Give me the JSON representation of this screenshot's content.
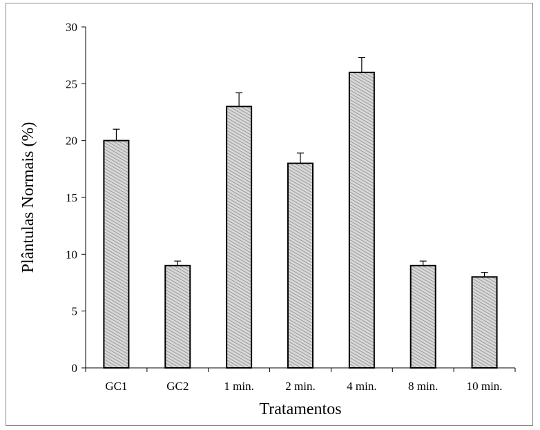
{
  "chart_data": {
    "type": "bar",
    "title": "",
    "xlabel": "Tratamentos",
    "ylabel": "Plântulas Normais (%)",
    "categories": [
      "GC1",
      "GC2",
      "1 min.",
      "2 min.",
      "4 min.",
      "8 min.",
      "10 min."
    ],
    "values": [
      20,
      9,
      23,
      18,
      26,
      9,
      8
    ],
    "error_bars": [
      1.0,
      0.4,
      1.2,
      0.9,
      1.3,
      0.4,
      0.4
    ],
    "ylim": [
      0,
      30
    ],
    "yticks": [
      0,
      5,
      10,
      15,
      20,
      25,
      30
    ],
    "grid": false,
    "legend": "none",
    "bar_fill": "hatched-gray",
    "colors": {
      "bar_stroke": "#000000",
      "hatch_light": "#d8d8d8",
      "hatch_dark": "#8a8a8a"
    }
  }
}
